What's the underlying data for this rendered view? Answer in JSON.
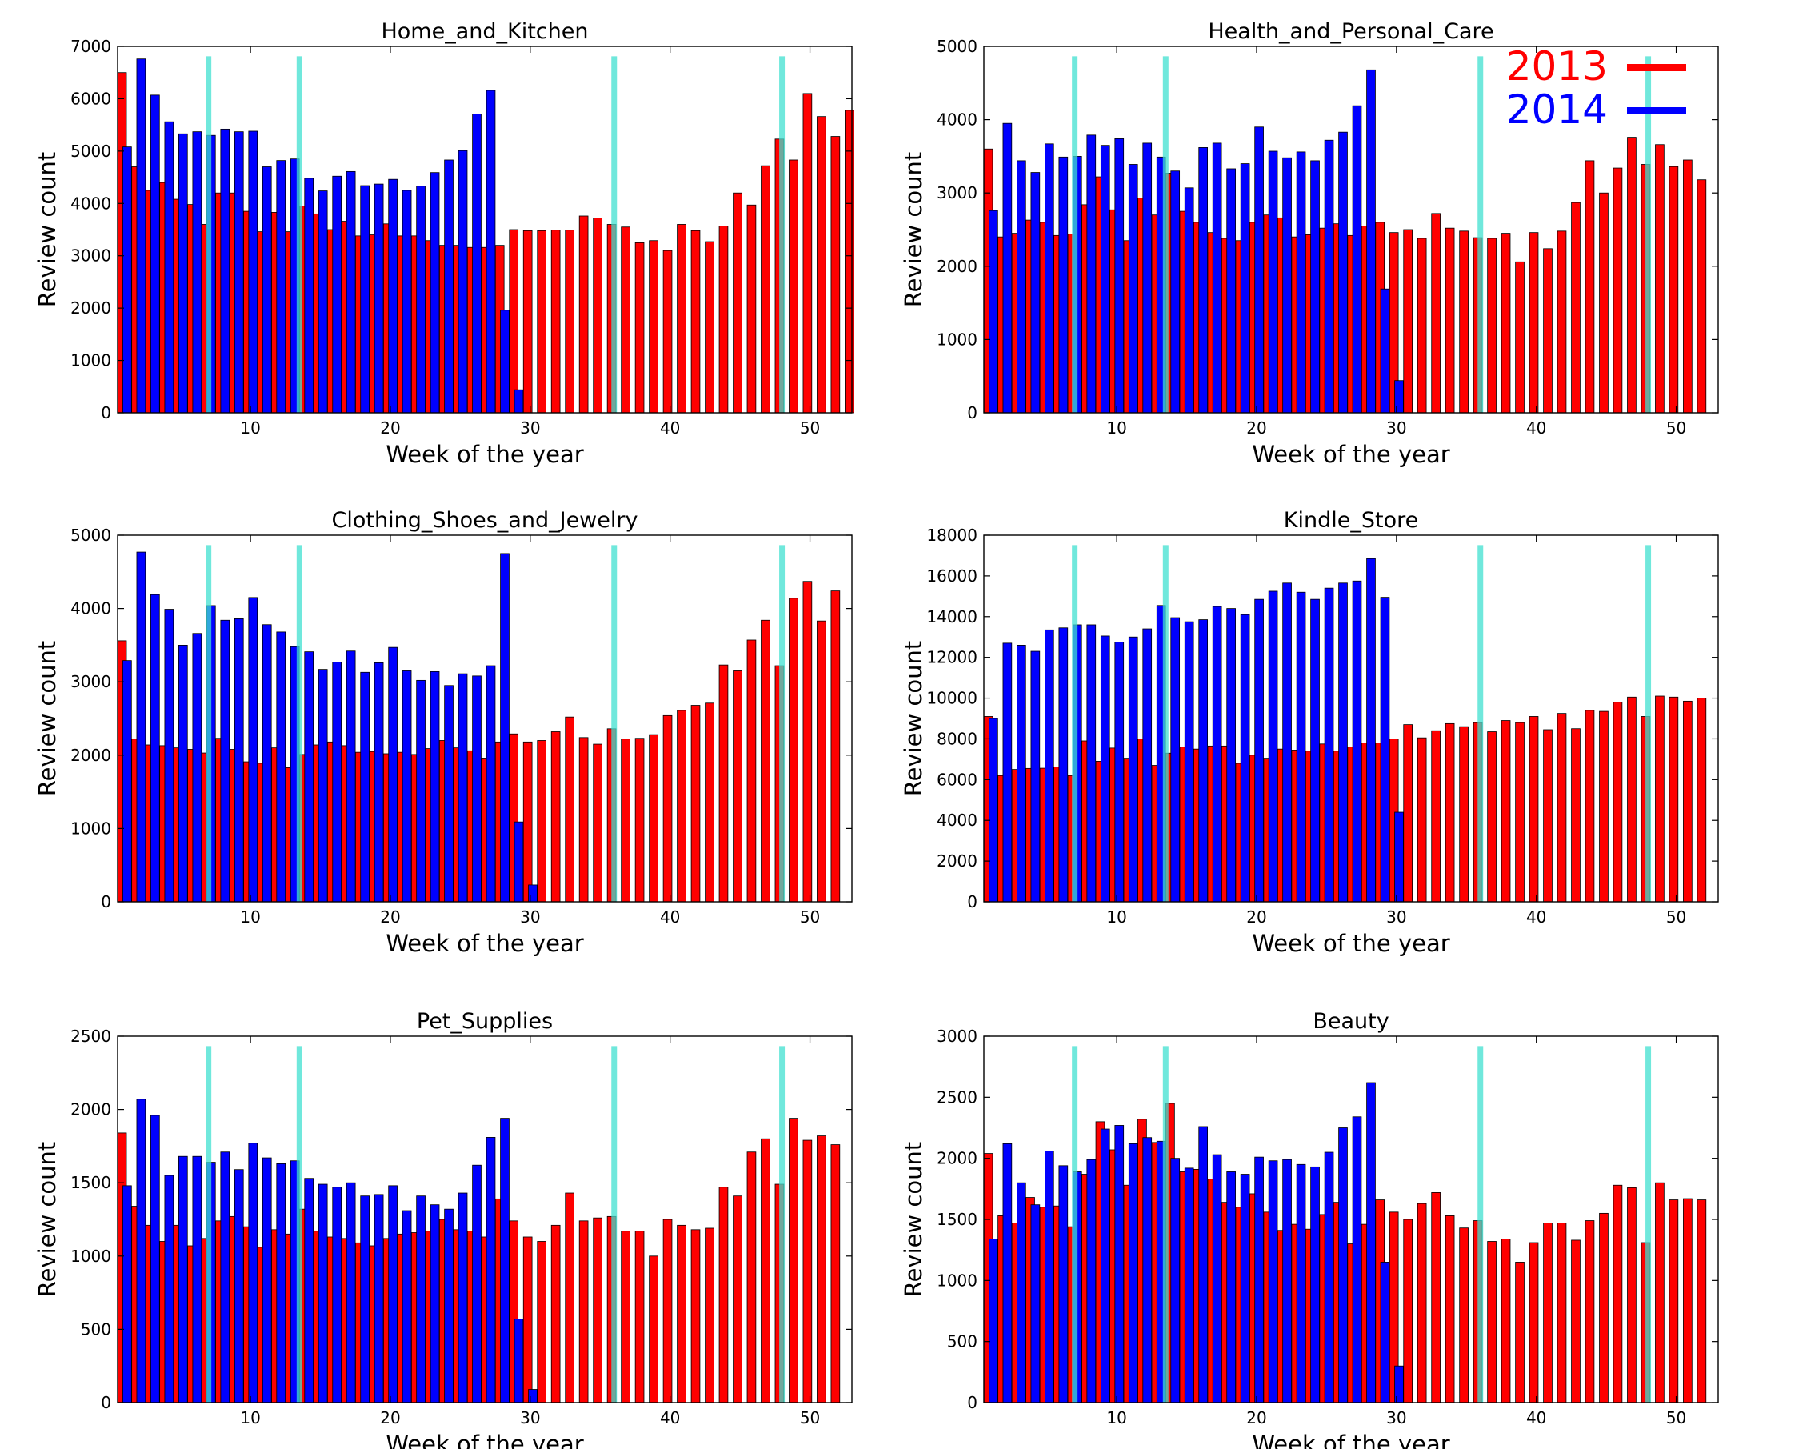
{
  "figure": {
    "legend": [
      {
        "label": "2013",
        "color": "#ff0000"
      },
      {
        "label": "2014",
        "color": "#0000ff"
      }
    ],
    "highlight_weeks": [
      7,
      13.5,
      36,
      48
    ],
    "highlight_color": "#40e0d0"
  },
  "chart_data": [
    {
      "type": "bar",
      "title": "Home_and_Kitchen",
      "xlabel": "Week of the year",
      "ylabel": "Review count",
      "ylim": [
        0,
        7000
      ],
      "yticks": [
        0,
        1000,
        2000,
        3000,
        4000,
        5000,
        6000,
        7000
      ],
      "xticks": [
        10,
        20,
        30,
        40,
        50
      ],
      "xlim": [
        0.5,
        53
      ],
      "series": [
        {
          "name": "2013",
          "color": "#ff0000",
          "values": [
            6500,
            4700,
            4250,
            4400,
            4080,
            3980,
            3600,
            4200,
            4200,
            3850,
            3460,
            3830,
            3460,
            3950,
            3800,
            3500,
            3660,
            3380,
            3400,
            3610,
            3380,
            3380,
            3290,
            3200,
            3200,
            3160,
            3160,
            3200,
            3500,
            3480,
            3480,
            3490,
            3490,
            3760,
            3720,
            3600,
            3550,
            3250,
            3290,
            3100,
            3600,
            3480,
            3270,
            3570,
            4200,
            3970,
            4720,
            5230,
            4830,
            6100,
            5660,
            5280,
            5780
          ]
        },
        {
          "name": "2014",
          "color": "#0000ff",
          "values": [
            5080,
            6760,
            6070,
            5560,
            5330,
            5370,
            5300,
            5420,
            5370,
            5380,
            4700,
            4820,
            4850,
            4480,
            4240,
            4520,
            4610,
            4340,
            4370,
            4460,
            4250,
            4330,
            4590,
            4830,
            5010,
            5710,
            6160,
            1960,
            440
          ]
        }
      ]
    },
    {
      "type": "bar",
      "title": "Health_and_Personal_Care",
      "xlabel": "Week of the year",
      "ylabel": "Review count",
      "ylim": [
        0,
        5000
      ],
      "yticks": [
        0,
        1000,
        2000,
        3000,
        4000,
        5000
      ],
      "xticks": [
        10,
        20,
        30,
        40,
        50
      ],
      "xlim": [
        0.5,
        53
      ],
      "series": [
        {
          "name": "2013",
          "color": "#ff0000",
          "values": [
            3600,
            2400,
            2450,
            2630,
            2600,
            2420,
            2440,
            2840,
            3220,
            2770,
            2350,
            2930,
            2700,
            3270,
            2750,
            2600,
            2460,
            2380,
            2350,
            2600,
            2700,
            2660,
            2400,
            2430,
            2520,
            2580,
            2420,
            2550,
            2600,
            2460,
            2500,
            2380,
            2720,
            2520,
            2480,
            2390,
            2380,
            2450,
            2060,
            2460,
            2240,
            2480,
            2870,
            3440,
            3000,
            3340,
            3760,
            3390,
            3660,
            3360,
            3450,
            3180
          ]
        },
        {
          "name": "2014",
          "color": "#0000ff",
          "values": [
            2760,
            3950,
            3440,
            3280,
            3670,
            3490,
            3500,
            3790,
            3650,
            3740,
            3390,
            3680,
            3490,
            3300,
            3070,
            3620,
            3680,
            3330,
            3400,
            3900,
            3570,
            3480,
            3560,
            3440,
            3720,
            3830,
            4190,
            4680,
            1690,
            440
          ]
        }
      ]
    },
    {
      "type": "bar",
      "title": "Clothing_Shoes_and_Jewelry",
      "xlabel": "Week of the year",
      "ylabel": "Review count",
      "ylim": [
        0,
        5000
      ],
      "yticks": [
        0,
        1000,
        2000,
        3000,
        4000,
        5000
      ],
      "xticks": [
        10,
        20,
        30,
        40,
        50
      ],
      "xlim": [
        0.5,
        53
      ],
      "series": [
        {
          "name": "2013",
          "color": "#ff0000",
          "values": [
            3560,
            2220,
            2140,
            2130,
            2100,
            2080,
            2030,
            2230,
            2080,
            1910,
            1890,
            2100,
            1830,
            2010,
            2140,
            2180,
            2130,
            2040,
            2050,
            2020,
            2040,
            2010,
            2090,
            2200,
            2100,
            2060,
            1960,
            2180,
            2290,
            2180,
            2200,
            2320,
            2520,
            2240,
            2150,
            2360,
            2220,
            2230,
            2280,
            2540,
            2610,
            2680,
            2710,
            3230,
            3150,
            3570,
            3840,
            3220,
            4140,
            4370,
            3830,
            4240
          ]
        },
        {
          "name": "2014",
          "color": "#0000ff",
          "values": [
            3290,
            4770,
            4190,
            3990,
            3500,
            3660,
            4040,
            3840,
            3860,
            4150,
            3780,
            3680,
            3480,
            3410,
            3170,
            3270,
            3420,
            3130,
            3260,
            3470,
            3150,
            3020,
            3140,
            2950,
            3110,
            3080,
            3220,
            4750,
            1090,
            230
          ]
        }
      ]
    },
    {
      "type": "bar",
      "title": "Kindle_Store",
      "xlabel": "Week of the year",
      "ylabel": "Review count",
      "ylim": [
        0,
        18000
      ],
      "yticks": [
        0,
        2000,
        4000,
        6000,
        8000,
        10000,
        12000,
        14000,
        16000,
        18000
      ],
      "xticks": [
        10,
        20,
        30,
        40,
        50
      ],
      "xlim": [
        0.5,
        53
      ],
      "series": [
        {
          "name": "2013",
          "color": "#ff0000",
          "values": [
            9100,
            6200,
            6500,
            6550,
            6560,
            6620,
            6200,
            7900,
            6900,
            7550,
            7050,
            8000,
            6700,
            7300,
            7600,
            7500,
            7650,
            7650,
            6800,
            7200,
            7050,
            7500,
            7450,
            7400,
            7750,
            7400,
            7600,
            7800,
            7800,
            8000,
            8700,
            8050,
            8400,
            8750,
            8600,
            8800,
            8350,
            8900,
            8800,
            9100,
            8450,
            9250,
            8500,
            9400,
            9350,
            9800,
            10050,
            9100,
            10100,
            10050,
            9850,
            10000
          ]
        },
        {
          "name": "2014",
          "color": "#0000ff",
          "values": [
            9000,
            12700,
            12600,
            12300,
            13350,
            13450,
            13600,
            13600,
            13050,
            12750,
            13000,
            13400,
            14550,
            13950,
            13750,
            13850,
            14500,
            14400,
            14100,
            14850,
            15250,
            15650,
            15200,
            14850,
            15400,
            15650,
            15750,
            16850,
            14950,
            4400
          ]
        }
      ]
    },
    {
      "type": "bar",
      "title": "Pet_Supplies",
      "xlabel": "Week of the year",
      "ylabel": "Review count",
      "ylim": [
        0,
        2500
      ],
      "yticks": [
        0,
        500,
        1000,
        1500,
        2000,
        2500
      ],
      "xticks": [
        10,
        20,
        30,
        40,
        50
      ],
      "xlim": [
        0.5,
        53
      ],
      "series": [
        {
          "name": "2013",
          "color": "#ff0000",
          "values": [
            1840,
            1340,
            1210,
            1100,
            1210,
            1070,
            1120,
            1240,
            1270,
            1200,
            1060,
            1180,
            1150,
            1320,
            1170,
            1130,
            1120,
            1090,
            1070,
            1120,
            1150,
            1160,
            1170,
            1250,
            1180,
            1170,
            1130,
            1390,
            1240,
            1130,
            1100,
            1210,
            1430,
            1240,
            1260,
            1270,
            1170,
            1170,
            1000,
            1250,
            1210,
            1180,
            1190,
            1470,
            1410,
            1710,
            1800,
            1490,
            1940,
            1790,
            1820,
            1760
          ]
        },
        {
          "name": "2014",
          "color": "#0000ff",
          "values": [
            1480,
            2070,
            1960,
            1550,
            1680,
            1680,
            1640,
            1710,
            1590,
            1770,
            1670,
            1630,
            1650,
            1530,
            1490,
            1470,
            1500,
            1410,
            1420,
            1480,
            1310,
            1410,
            1350,
            1320,
            1430,
            1620,
            1810,
            1940,
            570,
            90
          ]
        }
      ]
    },
    {
      "type": "bar",
      "title": "Beauty",
      "xlabel": "Week of the year",
      "ylabel": "Review count",
      "ylim": [
        0,
        3000
      ],
      "yticks": [
        0,
        500,
        1000,
        1500,
        2000,
        2500,
        3000
      ],
      "xticks": [
        10,
        20,
        30,
        40,
        50
      ],
      "xlim": [
        0.5,
        53
      ],
      "series": [
        {
          "name": "2013",
          "color": "#ff0000",
          "values": [
            2040,
            1530,
            1470,
            1680,
            1600,
            1610,
            1440,
            1870,
            2300,
            2070,
            1780,
            2320,
            2130,
            2450,
            1890,
            1910,
            1830,
            1640,
            1600,
            1710,
            1560,
            1410,
            1460,
            1420,
            1540,
            1640,
            1300,
            1460,
            1660,
            1560,
            1500,
            1630,
            1720,
            1530,
            1430,
            1490,
            1320,
            1340,
            1150,
            1310,
            1470,
            1470,
            1330,
            1490,
            1550,
            1780,
            1760,
            1310,
            1800,
            1660,
            1670,
            1660
          ]
        },
        {
          "name": "2014",
          "color": "#0000ff",
          "values": [
            1340,
            2120,
            1800,
            1620,
            2060,
            1940,
            1890,
            1990,
            2240,
            2270,
            2120,
            2170,
            2140,
            2000,
            1920,
            2260,
            2030,
            1890,
            1870,
            2010,
            1980,
            1990,
            1950,
            1930,
            2050,
            2250,
            2340,
            2620,
            1150,
            300
          ]
        }
      ]
    }
  ]
}
